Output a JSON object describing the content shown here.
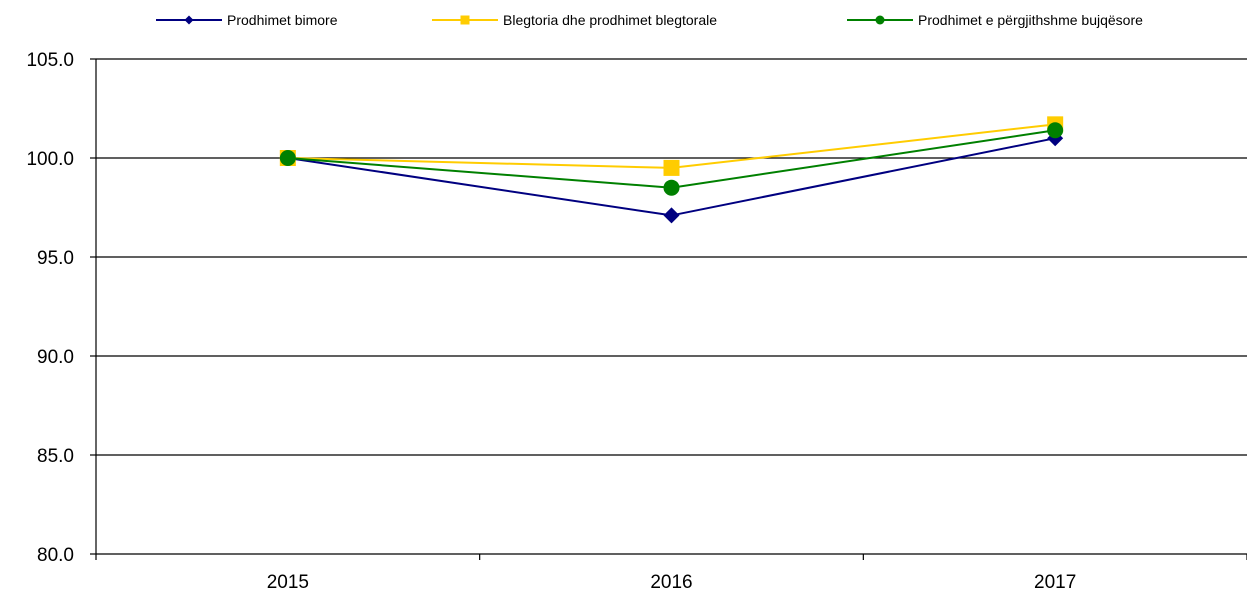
{
  "chart_data": {
    "type": "line",
    "categories": [
      "2015",
      "2016",
      "2017"
    ],
    "series": [
      {
        "name": "Prodhimet bimore",
        "values": [
          100.0,
          97.1,
          101.0
        ],
        "color": "#000080",
        "marker": "diamond"
      },
      {
        "name": "Blegtoria dhe prodhimet blegtorale",
        "values": [
          100.0,
          99.5,
          101.7
        ],
        "color": "#FFCC00",
        "marker": "square"
      },
      {
        "name": "Prodhimet e përgjithshme bujqësore",
        "values": [
          100.0,
          98.5,
          101.4
        ],
        "color": "#008000",
        "marker": "circle"
      }
    ],
    "y_ticks": [
      "80.0",
      "85.0",
      "90.0",
      "95.0",
      "100.0",
      "105.0"
    ],
    "ylim": [
      80,
      105
    ],
    "grid": true,
    "legend_position": "top"
  }
}
